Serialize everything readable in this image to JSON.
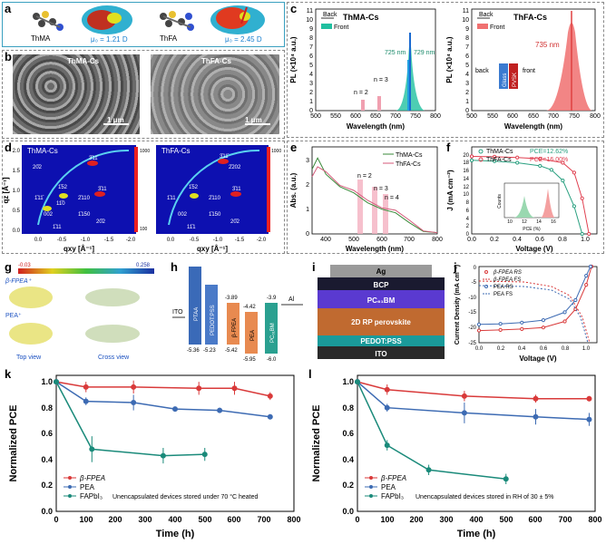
{
  "panels": {
    "a": {
      "label": "a",
      "mol1": "ThMA",
      "mol2": "ThFA",
      "mu1": "μ₀ = 1.21 D",
      "mu2": "μ₀ = 2.45 D"
    },
    "b": {
      "label": "b",
      "left": "ThMA-Cs",
      "right": "ThFA-Cs",
      "scale1": "1 μm",
      "scale2": "1 μm"
    },
    "c": {
      "label": "c",
      "left": {
        "title": "ThMA-Cs",
        "ylabel": "PL (×10⁴ a.u.)",
        "xlabel": "Wavelength (nm)",
        "legend": [
          "Back",
          "Front"
        ],
        "ann": [
          "n = 2",
          "n = 3",
          "725 nm",
          "729 nm"
        ],
        "xticks": [
          "500",
          "550",
          "600",
          "650",
          "700",
          "750",
          "800"
        ],
        "yticks": [
          "0",
          "1",
          "2",
          "3",
          "4",
          "5",
          "6",
          "7",
          "8",
          "9",
          "10",
          "11"
        ]
      },
      "right": {
        "title": "ThFA-Cs",
        "ylabel": "PL (×10⁴ a.u.)",
        "xlabel": "Wavelength (nm)",
        "legend": [
          "Back",
          "Front"
        ],
        "ann": [
          "735 nm",
          "back",
          "front",
          "Glass",
          "PVSK"
        ],
        "xticks": [
          "500",
          "550",
          "600",
          "650",
          "700",
          "750",
          "800"
        ],
        "yticks": [
          "0",
          "1",
          "2",
          "3",
          "4",
          "5",
          "6",
          "7",
          "8",
          "9",
          "10",
          "11"
        ]
      }
    },
    "d": {
      "label": "d",
      "left": "ThMA-Cs",
      "right": "ThFA-Cs",
      "xlabel": "qxy [Å⁻¹]",
      "ylabel": "qz [Å⁻¹]",
      "spots1": [
        "20̄2",
        "3̄11̄",
        "1̄52",
        "1̄11̄",
        "11̄0",
        "2̄110",
        "3̄11",
        "002",
        "1̄150",
        "20̄2",
        "1̄11"
      ],
      "spots2": [
        "2̄202",
        "3̄11̄",
        "1̄52",
        "1̄11",
        "2̄110",
        "3̄11",
        "002",
        "1̄150",
        "11̄1",
        "20̄2"
      ],
      "xt": [
        "0.0",
        "-0.5",
        "-1.0",
        "-1.5",
        "-2.0"
      ],
      "yt": [
        "0.0",
        "0.5",
        "1.0",
        "1.5",
        "2.0"
      ],
      "cb1": [
        "1000",
        "100"
      ],
      "cb2": [
        "1000"
      ]
    },
    "e": {
      "label": "e",
      "xlabel": "Wavelength (nm)",
      "ylabel": "Abs. (a.u.)",
      "legend": [
        "ThMA-Cs",
        "ThFA-Cs"
      ],
      "ann": [
        "n = 2",
        "n = 3",
        "n = 4"
      ],
      "xticks": [
        "400",
        "500",
        "600",
        "700",
        "800"
      ],
      "yticks": [
        "0",
        "1",
        "2",
        "3"
      ]
    },
    "f": {
      "label": "f",
      "xlabel": "Voltage (V)",
      "ylabel": "J (mA cm⁻²)",
      "legend": [
        "ThMA-Cs",
        "ThFA-Cs"
      ],
      "pce": [
        "PCE=12.62%",
        "PCE=16.00%"
      ],
      "inset_x": "PCE (%)",
      "inset_y": "Counts",
      "inset_xt": [
        "10",
        "12",
        "14",
        "16"
      ],
      "xticks": [
        "0.0",
        "0.2",
        "0.4",
        "0.6",
        "0.8",
        "1.0"
      ],
      "yticks": [
        "0",
        "2",
        "4",
        "6",
        "8",
        "10",
        "12",
        "14",
        "16",
        "18",
        "20"
      ]
    },
    "g": {
      "label": "g",
      "scale_min": "-0.03",
      "scale_max": "0.258",
      "mol1": "β-FPEA⁺",
      "mol2": "PEA⁺",
      "view1": "Top view",
      "view2": "Cross view"
    },
    "h": {
      "label": "h",
      "layers": [
        "ITO",
        "PTAA",
        "PEDOT:PSS",
        "β-FPEA",
        "PEA",
        "PC₆₁BM",
        "Al"
      ],
      "top": [
        "-3.89",
        "-4.42",
        "-3.9"
      ],
      "bottom": [
        "-5.36",
        "-5.23",
        "-5.42",
        "-5.95",
        "-6.0"
      ]
    },
    "i": {
      "label": "i",
      "layers": [
        "Ag",
        "BCP",
        "PC₆₁BM",
        "2D RP perovskite",
        "PEDOT:PSS",
        "ITO"
      ]
    },
    "j": {
      "label": "j",
      "xlabel": "Voltage (V)",
      "ylabel": "Current Density (mA cm⁻²)",
      "legend": [
        "β-FPEA RS",
        "β-FPEA FS",
        "PEA RS",
        "PEA FS"
      ],
      "xticks": [
        "0.0",
        "0.2",
        "0.4",
        "0.6",
        "0.8",
        "1.0"
      ],
      "yticks": [
        "-25",
        "-20",
        "-15",
        "-10",
        "-5",
        "0"
      ]
    },
    "k": {
      "label": "k",
      "xlabel": "Time (h)",
      "ylabel": "Normalized PCE",
      "legend": [
        "β-FPEA",
        "PEA",
        "FAPbI₃"
      ],
      "note": "Unencapsulated devices stored under 70 °C heated",
      "xticks": [
        "0",
        "100",
        "200",
        "300",
        "400",
        "500",
        "600",
        "700",
        "800"
      ],
      "yticks": [
        "0.0",
        "0.2",
        "0.4",
        "0.6",
        "0.8",
        "1.0"
      ]
    },
    "l": {
      "label": "l",
      "xlabel": "Time (h)",
      "ylabel": "Normalized PCE",
      "legend": [
        "β-FPEA",
        "PEA",
        "FAPbI₃"
      ],
      "note": "Unencapsulated devices stored in RH of 30 ± 5%",
      "xticks": [
        "0",
        "100",
        "200",
        "300",
        "400",
        "500",
        "600",
        "700",
        "800"
      ],
      "yticks": [
        "0.0",
        "0.2",
        "0.4",
        "0.6",
        "0.8",
        "1.0"
      ]
    }
  },
  "chart_data": [
    {
      "id": "k",
      "type": "line",
      "title": "",
      "xlabel": "Time (h)",
      "ylabel": "Normalized PCE",
      "xlim": [
        0,
        800
      ],
      "ylim": [
        0,
        1.05
      ],
      "series": [
        {
          "name": "β-FPEA",
          "color": "#d93a3a",
          "x": [
            0,
            100,
            260,
            480,
            600,
            720
          ],
          "y": [
            1.0,
            0.96,
            0.96,
            0.95,
            0.95,
            0.89
          ],
          "err": [
            0,
            0.04,
            0.05,
            0.05,
            0.05,
            0.03
          ]
        },
        {
          "name": "PEA",
          "color": "#3d6bb3",
          "x": [
            0,
            100,
            260,
            400,
            550,
            720
          ],
          "y": [
            1.0,
            0.85,
            0.84,
            0.79,
            0.78,
            0.73
          ],
          "err": [
            0,
            0.03,
            0.06,
            0.01,
            0.02,
            0.02
          ]
        },
        {
          "name": "FAPbI₃",
          "color": "#1a8a7a",
          "x": [
            0,
            120,
            360,
            500
          ],
          "y": [
            1.0,
            0.48,
            0.43,
            0.44
          ],
          "err": [
            0,
            0.1,
            0.06,
            0.05
          ]
        }
      ]
    },
    {
      "id": "l",
      "type": "line",
      "title": "",
      "xlabel": "Time (h)",
      "ylabel": "Normalized PCE",
      "xlim": [
        0,
        800
      ],
      "ylim": [
        0,
        1.05
      ],
      "series": [
        {
          "name": "β-FPEA",
          "color": "#d93a3a",
          "x": [
            0,
            100,
            360,
            600,
            780
          ],
          "y": [
            1.0,
            0.94,
            0.89,
            0.87,
            0.87
          ],
          "err": [
            0,
            0.04,
            0.04,
            0.03,
            0.02
          ]
        },
        {
          "name": "PEA",
          "color": "#3d6bb3",
          "x": [
            0,
            100,
            360,
            600,
            780
          ],
          "y": [
            1.0,
            0.8,
            0.76,
            0.73,
            0.71
          ],
          "err": [
            0,
            0.03,
            0.08,
            0.06,
            0.05
          ]
        },
        {
          "name": "FAPbI₃",
          "color": "#1a8a7a",
          "x": [
            0,
            100,
            240,
            500
          ],
          "y": [
            1.0,
            0.51,
            0.32,
            0.25
          ],
          "err": [
            0,
            0.04,
            0.04,
            0.04
          ]
        }
      ]
    },
    {
      "id": "e",
      "type": "line",
      "xlabel": "Wavelength (nm)",
      "ylabel": "Abs. (a.u.)",
      "xlim": [
        350,
        800
      ],
      "ylim": [
        0,
        3.5
      ],
      "series": [
        {
          "name": "ThMA-Cs",
          "color": "#3a8a3a",
          "x": [
            350,
            370,
            400,
            450,
            500,
            550,
            600,
            650,
            700,
            750,
            800
          ],
          "y": [
            2.6,
            3.05,
            2.4,
            1.9,
            1.65,
            1.25,
            1.0,
            0.85,
            0.45,
            0.1,
            0.05
          ]
        },
        {
          "name": "ThFA-Cs",
          "color": "#d45a7a",
          "x": [
            350,
            370,
            400,
            450,
            500,
            550,
            600,
            650,
            700,
            750,
            800
          ],
          "y": [
            2.3,
            2.7,
            2.5,
            1.95,
            1.75,
            1.35,
            1.05,
            0.95,
            0.55,
            0.12,
            0.05
          ]
        }
      ]
    },
    {
      "id": "f",
      "type": "line",
      "xlabel": "Voltage (V)",
      "ylabel": "J (mA cm⁻²)",
      "xlim": [
        0,
        1.1
      ],
      "ylim": [
        0,
        22
      ],
      "series": [
        {
          "name": "ThMA-Cs",
          "color": "#2aa080",
          "x": [
            0,
            0.2,
            0.4,
            0.6,
            0.7,
            0.8,
            0.9,
            0.97
          ],
          "y": [
            18.6,
            18.4,
            18.0,
            17.2,
            16.2,
            13.5,
            7.0,
            0
          ]
        },
        {
          "name": "ThFA-Cs",
          "color": "#e04050",
          "x": [
            0,
            0.2,
            0.4,
            0.6,
            0.8,
            0.9,
            0.97,
            1.03
          ],
          "y": [
            19.6,
            19.5,
            19.3,
            19.0,
            18.0,
            15.5,
            9.0,
            0
          ]
        }
      ]
    },
    {
      "id": "j",
      "type": "line",
      "xlabel": "Voltage (V)",
      "ylabel": "Current Density (mA cm⁻²)",
      "xlim": [
        0,
        1.1
      ],
      "ylim": [
        -25,
        0
      ],
      "series": [
        {
          "name": "β-FPEA RS",
          "color": "#d93a3a",
          "x": [
            0,
            0.2,
            0.4,
            0.6,
            0.8,
            0.9,
            1.0,
            1.05
          ],
          "y": [
            -21,
            -20.8,
            -20.5,
            -20,
            -18,
            -14,
            -6,
            0
          ]
        },
        {
          "name": "PEA RS",
          "color": "#3d6bb3",
          "x": [
            0,
            0.2,
            0.4,
            0.6,
            0.8,
            0.9,
            1.0,
            1.04
          ],
          "y": [
            -19,
            -18.8,
            -18.4,
            -17.6,
            -15,
            -11,
            -3,
            0
          ]
        }
      ]
    }
  ]
}
